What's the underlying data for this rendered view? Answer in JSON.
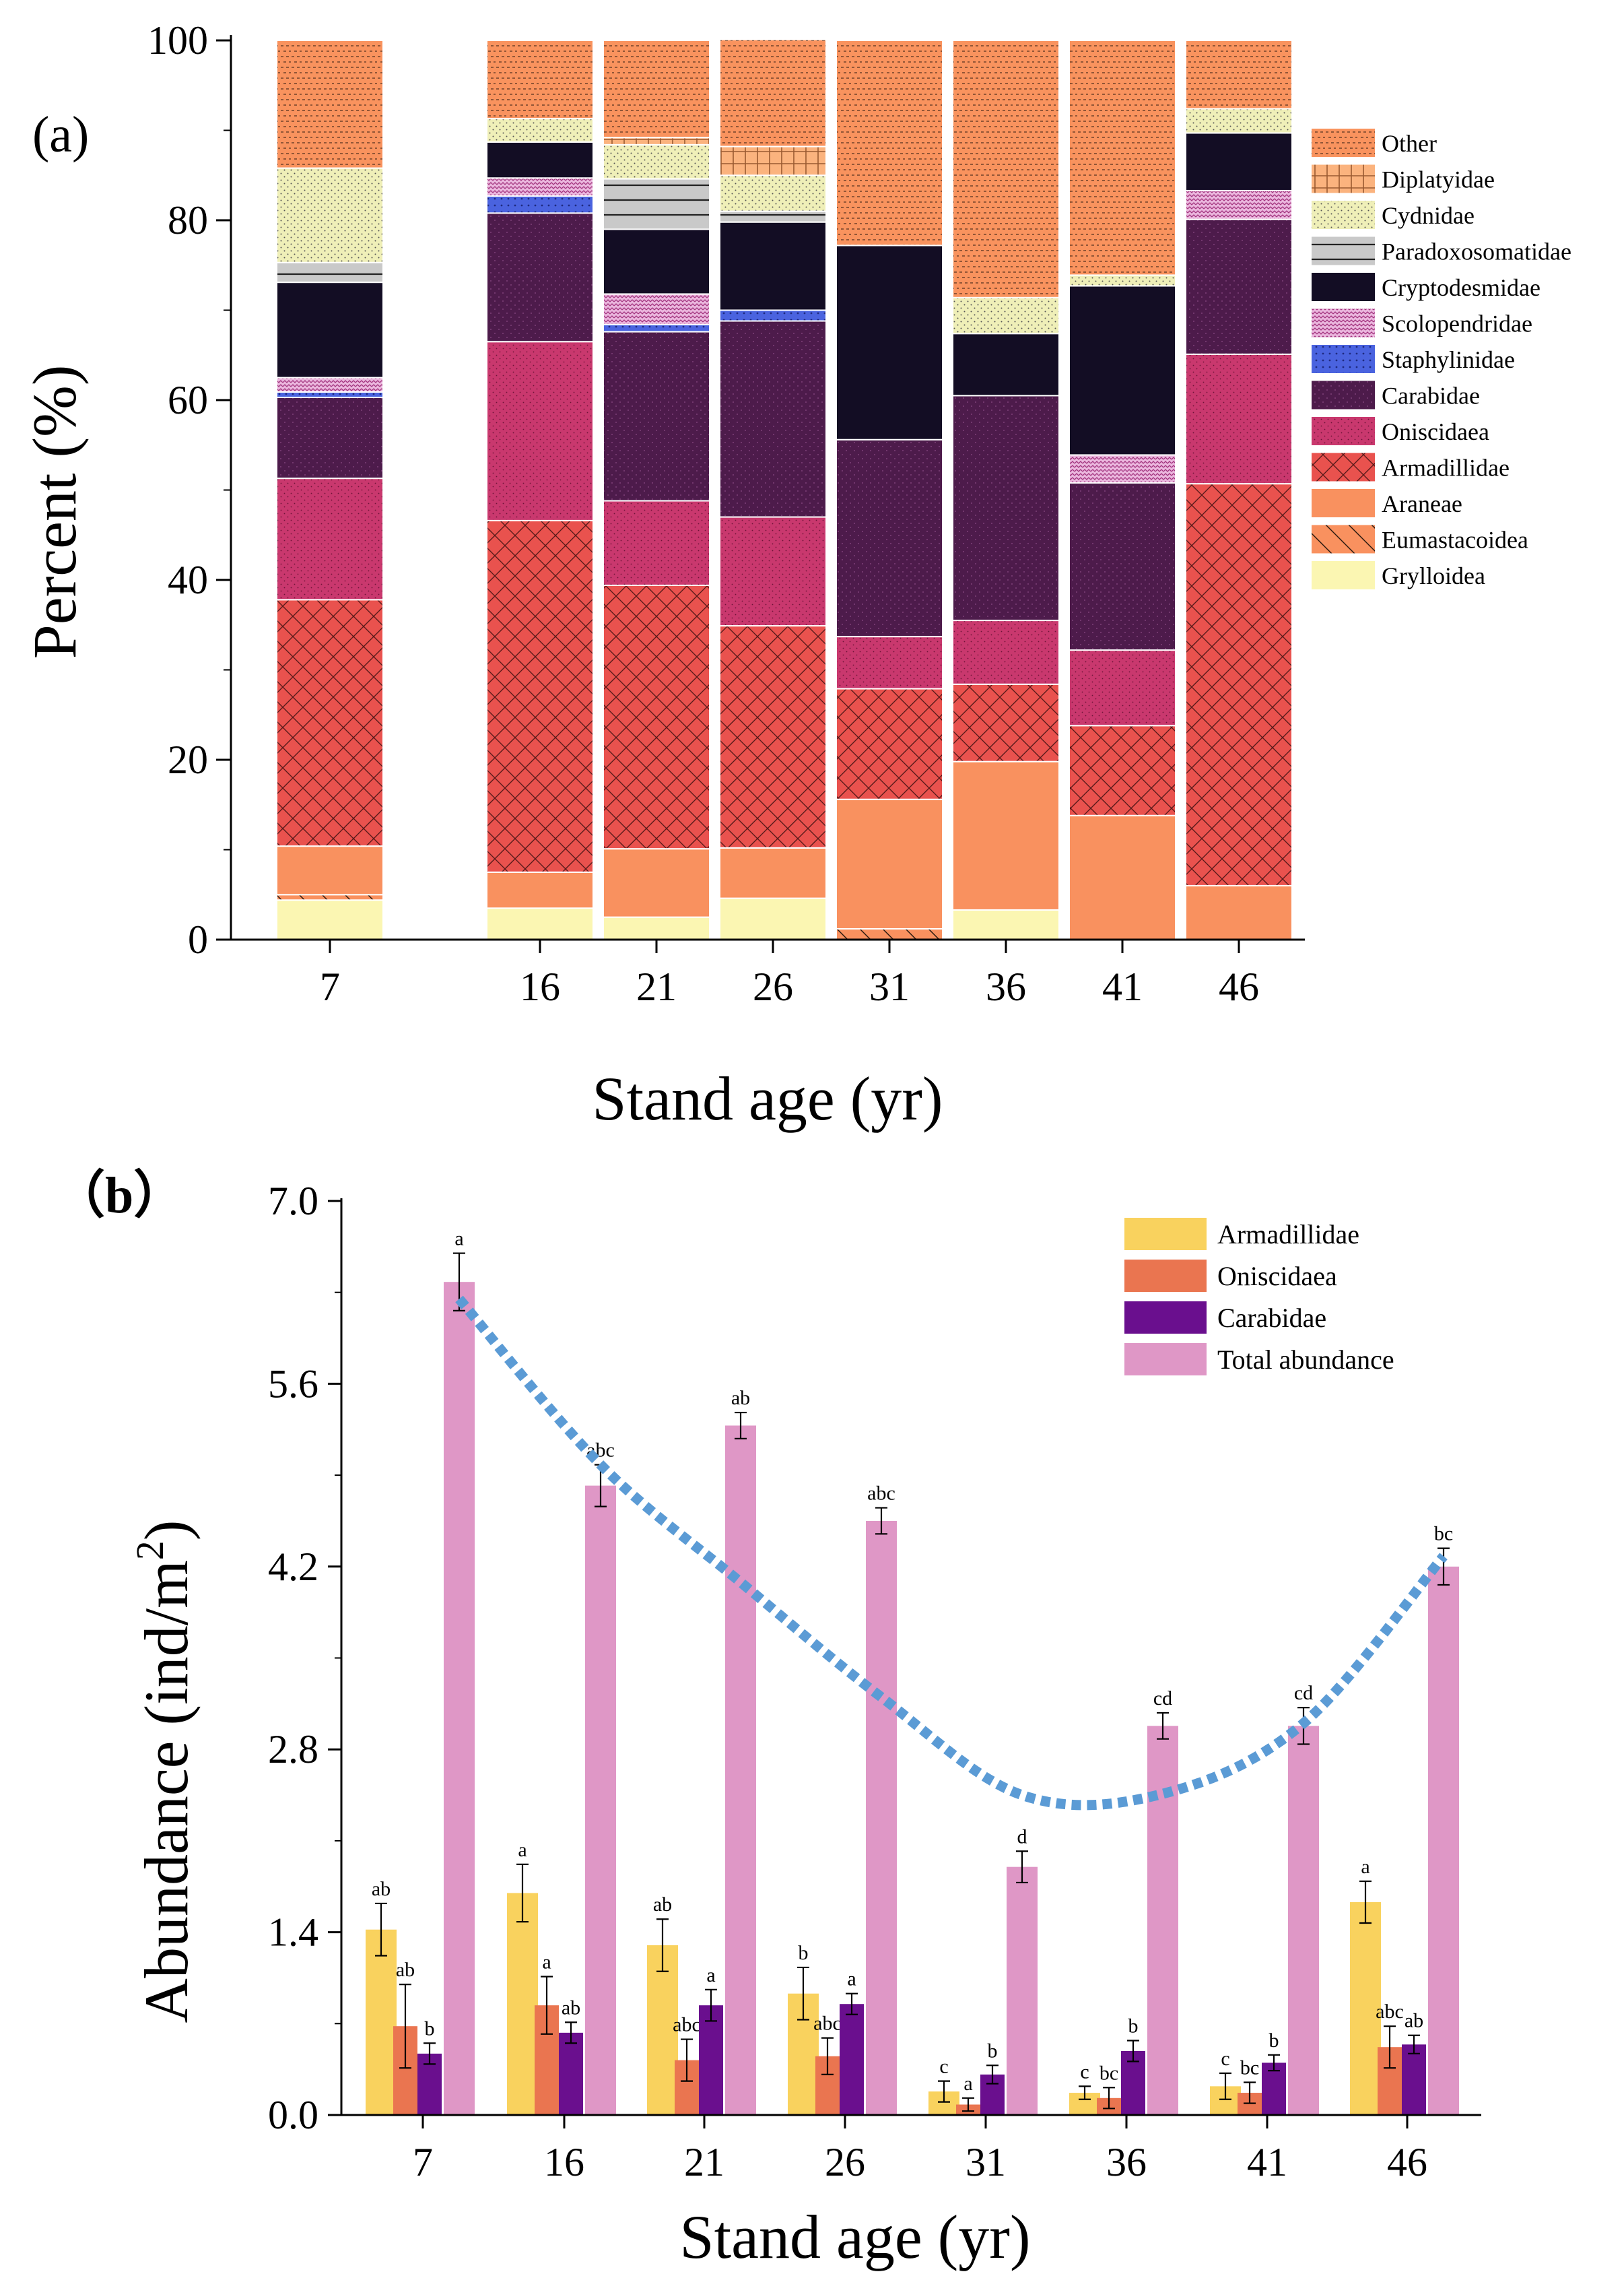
{
  "colors": {
    "Other": "#F9935E",
    "Diplatyidae": "#FBB37E",
    "Cydnidae": "#EFEFB8",
    "Paradoxosomatidae": "#C9C9C9",
    "Cryptodesmidae": "#130D24",
    "Scolopendridae": "#EBB7DE",
    "Staphylinidae": "#4A63DF",
    "Carabidae": "#4D1B4B",
    "Oniscidaea": "#C9386E",
    "Armadillidae": "#E9524E",
    "Araneae": "#F9915F",
    "Eumastacoidea": "#F9915F",
    "Grylloidea": "#FBF6B2",
    "b_Armadillidae": "#F9D25E",
    "b_Oniscidaea": "#EA7550",
    "b_Carabidae": "#6A0F8E",
    "b_Total": "#DF97C6",
    "trend": "#5B9BD5"
  },
  "chart_data": [
    {
      "panel_label": "(a)",
      "type": "bar",
      "stacked": true,
      "title": "",
      "xlabel": "Stand age (yr)",
      "ylabel": "Percent (%)",
      "ylim": [
        0,
        100
      ],
      "yticks": [
        "0",
        "20",
        "40",
        "60",
        "80",
        "100"
      ],
      "categories": [
        "7",
        "16",
        "21",
        "26",
        "31",
        "36",
        "41",
        "46"
      ],
      "legend_position": "right",
      "legend_order": [
        "Other",
        "Diplatyidae",
        "Cydnidae",
        "Paradoxosomatidae",
        "Cryptodesmidae",
        "Scolopendridae",
        "Staphylinidae",
        "Carabidae",
        "Oniscidaea",
        "Armadillidae",
        "Araneae",
        "Eumastacoidea",
        "Grylloidea"
      ],
      "series": [
        {
          "name": "Grylloidea",
          "values": [
            4.4,
            3.5,
            2.5,
            4.6,
            0,
            3.3,
            0,
            0
          ]
        },
        {
          "name": "Eumastacoidea",
          "values": [
            0.6,
            0,
            0,
            0,
            1.2,
            0,
            0,
            0
          ]
        },
        {
          "name": "Araneae",
          "values": [
            5.4,
            4.0,
            7.6,
            5.6,
            14.4,
            16.5,
            13.8,
            6.0
          ]
        },
        {
          "name": "Armadillidae",
          "values": [
            27.4,
            39.1,
            29.3,
            24.7,
            12.3,
            8.6,
            10.0,
            44.7
          ]
        },
        {
          "name": "Oniscidaea",
          "values": [
            13.5,
            19.9,
            9.4,
            12.1,
            5.8,
            7.1,
            8.4,
            14.4
          ]
        },
        {
          "name": "Carabidae",
          "values": [
            9.0,
            14.3,
            18.8,
            21.8,
            21.9,
            25.0,
            18.6,
            15.0
          ]
        },
        {
          "name": "Staphylinidae",
          "values": [
            0.6,
            1.9,
            0.8,
            1.2,
            0,
            0,
            0,
            0
          ]
        },
        {
          "name": "Scolopendridae",
          "values": [
            1.6,
            2.0,
            3.4,
            0,
            0,
            0,
            3.1,
            3.2
          ]
        },
        {
          "name": "Cryptodesmidae",
          "values": [
            10.6,
            4.0,
            7.2,
            9.8,
            21.6,
            6.9,
            18.8,
            6.4
          ]
        },
        {
          "name": "Paradoxosomatidae",
          "values": [
            2.2,
            0,
            5.6,
            1.2,
            0,
            0,
            0,
            0
          ]
        },
        {
          "name": "Cydnidae",
          "values": [
            10.5,
            2.6,
            3.8,
            4.0,
            0,
            4.0,
            1.2,
            2.7
          ]
        },
        {
          "name": "Diplatyidae",
          "values": [
            0,
            0,
            0.8,
            3.2,
            0,
            0,
            0,
            0
          ]
        },
        {
          "name": "Other",
          "values": [
            14.2,
            8.7,
            10.8,
            11.9,
            22.8,
            28.6,
            26.1,
            7.6
          ]
        }
      ]
    },
    {
      "panel_label": "（b）",
      "type": "bar",
      "title": "",
      "xlabel": "Stand age (yr)",
      "ylabel_main": "Abundance (ind/m",
      "ylabel_sup": "2",
      "ylabel_close": ")",
      "ylim": [
        0,
        7.0
      ],
      "yticks": [
        "0.0",
        "1.4",
        "2.8",
        "4.2",
        "5.6",
        "7.0"
      ],
      "categories": [
        "7",
        "16",
        "21",
        "26",
        "31",
        "36",
        "41",
        "46"
      ],
      "legend_position": "top-right",
      "series": [
        {
          "name": "Armadillidae",
          "values": [
            1.42,
            1.7,
            1.3,
            0.93,
            0.18,
            0.17,
            0.22,
            1.63
          ],
          "errors": [
            0.2,
            0.22,
            0.2,
            0.2,
            0.08,
            0.05,
            0.1,
            0.16
          ],
          "letters": [
            "ab",
            "a",
            "ab",
            "b",
            "c",
            "c",
            "c",
            "a"
          ]
        },
        {
          "name": "Oniscidaea",
          "values": [
            0.68,
            0.84,
            0.42,
            0.45,
            0.08,
            0.13,
            0.17,
            0.52
          ],
          "errors": [
            0.32,
            0.22,
            0.16,
            0.14,
            0.05,
            0.08,
            0.08,
            0.16
          ],
          "letters": [
            "ab",
            "a",
            "abc",
            "abc",
            "a",
            "bc",
            "bc",
            "abc"
          ]
        },
        {
          "name": "Carabidae",
          "values": [
            0.47,
            0.63,
            0.84,
            0.85,
            0.31,
            0.49,
            0.4,
            0.54
          ],
          "errors": [
            0.08,
            0.08,
            0.12,
            0.08,
            0.07,
            0.08,
            0.06,
            0.07
          ],
          "letters": [
            "b",
            "ab",
            "a",
            "a",
            "b",
            "b",
            "b",
            "ab"
          ]
        },
        {
          "name": "Total abundance",
          "values": [
            6.38,
            4.82,
            5.28,
            4.55,
            1.9,
            2.98,
            2.98,
            4.2
          ],
          "errors": [
            0.22,
            0.16,
            0.1,
            0.1,
            0.12,
            0.1,
            0.14,
            0.14
          ],
          "letters": [
            "a",
            "abc",
            "ab",
            "abc",
            "d",
            "cd",
            "cd",
            "bc"
          ]
        }
      ],
      "trend_line": {
        "style": "dotted",
        "x": [
          7,
          16,
          21,
          26,
          31,
          36,
          41,
          46
        ],
        "y": [
          6.25,
          4.98,
          4.08,
          3.2,
          2.45,
          2.46,
          3.0,
          4.28
        ]
      }
    }
  ]
}
